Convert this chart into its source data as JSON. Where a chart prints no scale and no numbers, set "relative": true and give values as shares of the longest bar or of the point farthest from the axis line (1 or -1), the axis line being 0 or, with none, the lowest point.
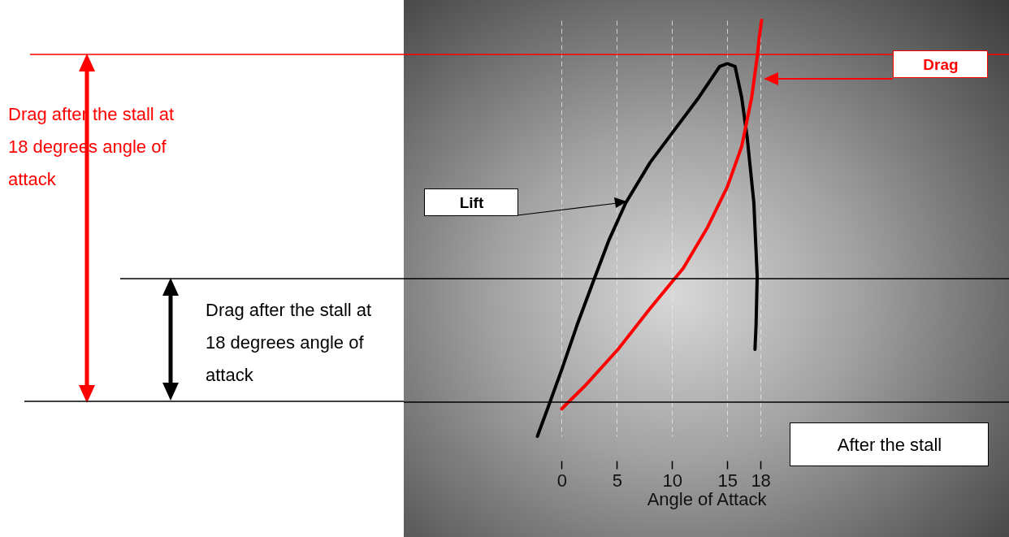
{
  "chart_data": {
    "type": "line",
    "relative": true,
    "xlabel": "Angle of Attack",
    "xlim": [
      -14.3,
      40.5
    ],
    "xticks": [
      0,
      5,
      10,
      15,
      18
    ],
    "grid": "x",
    "marker": "none",
    "line_style": "solid",
    "series": [
      {
        "name": "Lift",
        "color": "#000000",
        "x": [
          -2.2,
          -1.2,
          0,
          1.4,
          2.9,
          4.3,
          5.8,
          8.0,
          10.2,
          12.4,
          14.3,
          15.0,
          15.7,
          16.3,
          16.8,
          17.4,
          17.7,
          17.6,
          17.5
        ],
        "values": [
          0,
          0.072,
          0.16,
          0.268,
          0.375,
          0.473,
          0.561,
          0.658,
          0.736,
          0.814,
          0.889,
          0.896,
          0.889,
          0.814,
          0.717,
          0.561,
          0.385,
          0.268,
          0.209
        ]
      },
      {
        "name": "Drag",
        "color": "#ff0000",
        "x": [
          0,
          2.1,
          5.1,
          8.0,
          11.0,
          13.2,
          15.0,
          16.3,
          17.2,
          17.7,
          17.9,
          18.1
        ],
        "values": [
          0.066,
          0.121,
          0.209,
          0.307,
          0.404,
          0.502,
          0.6,
          0.697,
          0.814,
          0.912,
          0.961,
          1
        ]
      }
    ],
    "ref_lines": [
      {
        "axis": "y",
        "value": 0.918,
        "color": "#ff0000"
      },
      {
        "axis": "y",
        "value": 0.379,
        "color": "#000000"
      },
      {
        "axis": "y",
        "value": 0.082,
        "color": "#000000"
      }
    ],
    "annotations": [
      "Drag after the stall at 18 degrees angle of attack",
      "Drag after the stall at 18 degrees angle of attack",
      "After the stall"
    ]
  }
}
